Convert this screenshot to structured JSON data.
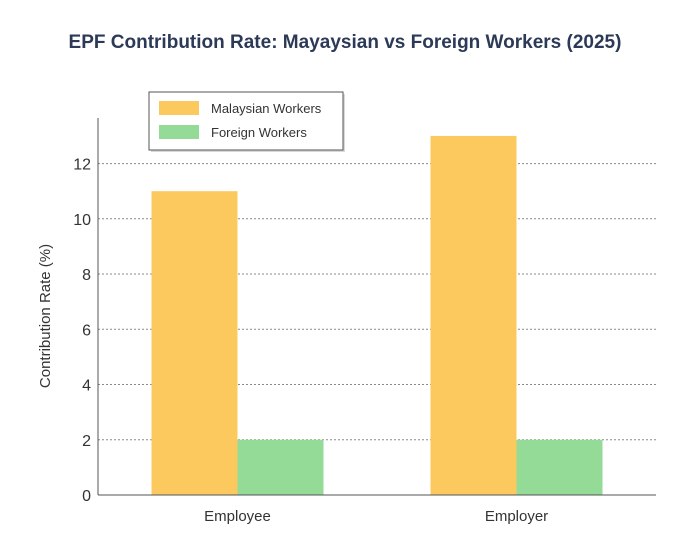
{
  "chart_data": {
    "type": "bar",
    "title": "EPF Contribution Rate: Mayaysian vs Foreign Workers (2025)",
    "xlabel": "",
    "ylabel": "Contribution Rate (%)",
    "categories": [
      "Employee",
      "Employer"
    ],
    "series": [
      {
        "name": "Malaysian Workers",
        "color": "#fcc95e",
        "values": [
          11,
          13
        ]
      },
      {
        "name": "Foreign Workers",
        "color": "#93db96",
        "values": [
          2,
          2
        ]
      }
    ],
    "ylim": [
      0,
      13.65
    ],
    "yticks": [
      0,
      2,
      4,
      6,
      8,
      10,
      12
    ],
    "grid": true,
    "legend_position": "top-left"
  }
}
